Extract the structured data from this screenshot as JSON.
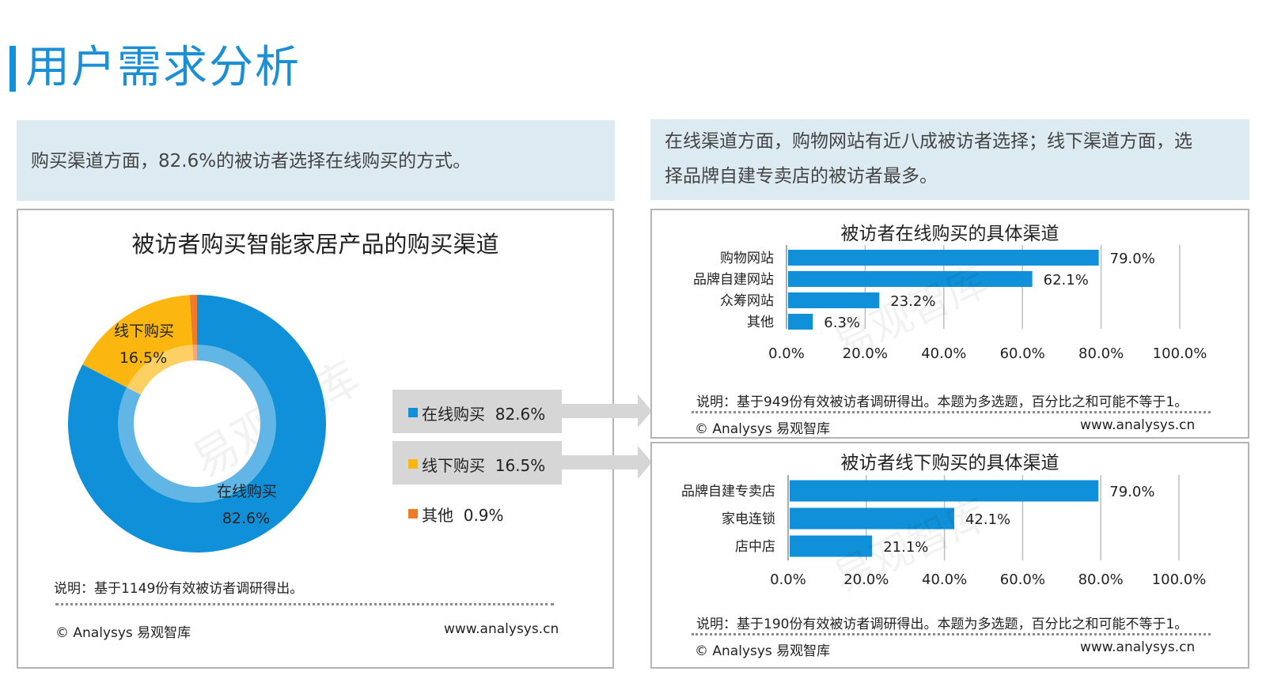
{
  "page": {
    "title": "用户需求分析",
    "note_left": "购买渠道方面，82.6%的被访者选择在线购买的方式。",
    "note_right_line1": "在线渠道方面，购物网站有近八成被访者选择；线下渠道方面，选",
    "note_right_line2": "择品牌自建专卖店的被访者最多。",
    "watermark": "易观智库"
  },
  "legend": [
    {
      "label": "在线购买",
      "value": "82.6%",
      "color": "#0f90d8"
    },
    {
      "label": "线下购买",
      "value": "16.5%",
      "color": "#fbb710"
    },
    {
      "label": "其他",
      "value": "0.9%",
      "color": "#f07a28"
    }
  ],
  "footer": {
    "note_left": "说明：基于1149份有效被访者调研得出。",
    "note_r1": "说明：基于949份有效被访者调研得出。本题为多选题，百分比之和可能不等于1。",
    "note_r2": "说明：基于190份有效被访者调研得出。本题为多选题，百分比之和可能不等于1。",
    "copyright": "© Analysys 易观智库",
    "url": "www.analysys.cn"
  },
  "chart_data": [
    {
      "type": "pie",
      "title": "被访者购买智能家居产品的购买渠道",
      "categories": [
        "在线购买",
        "线下购买",
        "其他"
      ],
      "values": [
        82.6,
        16.5,
        0.9
      ],
      "value_labels": [
        "82.6%",
        "16.5%",
        "0.9%"
      ],
      "colors": [
        "#0f90d8",
        "#fbb710",
        "#f07a28"
      ],
      "donut": true
    },
    {
      "type": "bar",
      "orientation": "horizontal",
      "title": "被访者在线购买的具体渠道",
      "categories": [
        "购物网站",
        "品牌自建网站",
        "众筹网站",
        "其他"
      ],
      "values": [
        79.0,
        62.1,
        23.2,
        6.3
      ],
      "value_labels": [
        "79.0%",
        "62.1%",
        "23.2%",
        "6.3%"
      ],
      "xlim": [
        0,
        100
      ],
      "ticks": [
        "0.0%",
        "20.0%",
        "40.0%",
        "60.0%",
        "80.0%",
        "100.0%"
      ],
      "grid": true,
      "color": "#0f90d8"
    },
    {
      "type": "bar",
      "orientation": "horizontal",
      "title": "被访者线下购买的具体渠道",
      "categories": [
        "品牌自建专卖店",
        "家电连锁",
        "店中店"
      ],
      "values": [
        79.0,
        42.1,
        21.1
      ],
      "value_labels": [
        "79.0%",
        "42.1%",
        "21.1%"
      ],
      "xlim": [
        0,
        100
      ],
      "ticks": [
        "0.0%",
        "20.0%",
        "40.0%",
        "60.0%",
        "80.0%",
        "100.0%"
      ],
      "grid": true,
      "color": "#0f90d8"
    }
  ]
}
